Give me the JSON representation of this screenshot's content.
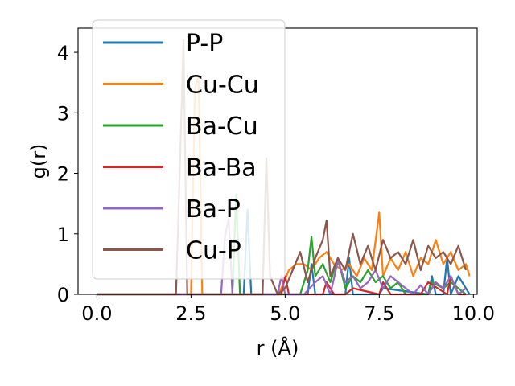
{
  "chart_data": {
    "type": "line",
    "xlabel": "r (Å)",
    "ylabel": "g(r)",
    "xlim": [
      -0.5,
      10.1
    ],
    "ylim": [
      0,
      4.4
    ],
    "xticks": [
      "0.0",
      "2.5",
      "5.0",
      "7.5",
      "10.0"
    ],
    "xtick_values": [
      0.0,
      2.5,
      5.0,
      7.5,
      10.0
    ],
    "yticks": [
      "0",
      "1",
      "2",
      "3",
      "4"
    ],
    "ytick_values": [
      0,
      1,
      2,
      3,
      4
    ],
    "grid": false,
    "legend_position": "upper-left",
    "series": [
      {
        "name": "P-P",
        "color": "#1f77b4",
        "x": [
          0,
          2.5,
          3.9,
          4.0,
          4.1,
          5.0,
          5.6,
          5.7,
          5.8,
          6.6,
          6.7,
          6.8,
          7.5,
          7.6,
          8.8,
          8.9,
          9.0,
          9.2,
          9.3,
          9.4,
          9.6,
          9.8,
          9.9
        ],
        "y": [
          0,
          0,
          0,
          1.4,
          0,
          0,
          0,
          0.5,
          0,
          0,
          0.6,
          0,
          0,
          0.1,
          0,
          0.3,
          0,
          0,
          0.6,
          0,
          0.3,
          0.1,
          0
        ]
      },
      {
        "name": "Cu-Cu",
        "color": "#ff7f0e",
        "x": [
          0,
          2.5,
          2.6,
          2.7,
          2.8,
          4.8,
          4.9,
          5.1,
          5.3,
          5.5,
          5.7,
          5.9,
          6.1,
          6.3,
          6.5,
          6.7,
          6.9,
          7.1,
          7.3,
          7.5,
          7.6,
          7.8,
          8.0,
          8.2,
          8.4,
          8.6,
          8.8,
          9.0,
          9.2,
          9.4,
          9.6,
          9.8,
          9.9
        ],
        "y": [
          0,
          0,
          3.4,
          3.6,
          0,
          0,
          0.1,
          0.4,
          0.5,
          0.5,
          0.4,
          0.6,
          0.7,
          0.5,
          0.4,
          0.5,
          0.3,
          0.6,
          0.4,
          1.35,
          0.3,
          0.6,
          0.4,
          0.7,
          0.3,
          0.6,
          0.5,
          0.9,
          0.5,
          0.7,
          0.4,
          0.5,
          0.3
        ]
      },
      {
        "name": "Ba-Cu",
        "color": "#2ca02c",
        "x": [
          0,
          3.5,
          3.6,
          3.7,
          3.8,
          5.4,
          5.5,
          5.6,
          5.7,
          5.8,
          6.0,
          6.2,
          6.4,
          6.6,
          6.8,
          7.0,
          7.2,
          7.4,
          7.6,
          7.8,
          8.0,
          8.2,
          8.8,
          8.9,
          9.2,
          9.4,
          9.6,
          9.8
        ],
        "y": [
          0,
          0,
          0,
          1.65,
          0,
          0,
          0.2,
          0.4,
          0.95,
          0.3,
          0.5,
          0.2,
          0.6,
          0.1,
          0.3,
          0.2,
          0.4,
          0.2,
          0.3,
          0.1,
          0.2,
          0,
          0,
          0.2,
          0.1,
          0.2,
          0.1,
          0
        ]
      },
      {
        "name": "Ba-Ba",
        "color": "#d62728",
        "x": [
          0,
          4.9,
          5.0,
          5.1,
          5.3,
          6.0,
          6.1,
          6.3,
          6.6,
          6.8,
          7.5,
          7.6,
          7.8,
          8.6,
          8.8,
          9.3,
          9.4,
          9.6,
          9.8
        ],
        "y": [
          0,
          0,
          0.3,
          0,
          0,
          0,
          0.2,
          0,
          0,
          0.1,
          0,
          0.2,
          0,
          0,
          0.2,
          0,
          0.3,
          0,
          0
        ]
      },
      {
        "name": "Ba-P",
        "color": "#9467bd",
        "x": [
          0,
          3.3,
          3.4,
          3.5,
          3.6,
          4.8,
          4.9,
          5.0,
          5.5,
          5.8,
          6.0,
          6.2,
          6.4,
          6.6,
          6.8,
          7.0,
          7.2,
          7.4,
          7.6,
          7.8,
          8.4,
          8.6,
          8.8,
          9.0,
          9.2,
          9.4,
          9.6,
          9.8
        ],
        "y": [
          0,
          0,
          0.95,
          1.25,
          0,
          0,
          0.3,
          0,
          0,
          0.2,
          0.3,
          0,
          0.55,
          0.2,
          0.3,
          0.1,
          0.2,
          0.4,
          0.1,
          0.3,
          0,
          0.15,
          0,
          0.2,
          0.1,
          0.3,
          0,
          0.1
        ]
      },
      {
        "name": "Cu-P",
        "color": "#8c564b",
        "x": [
          0,
          2.1,
          2.2,
          2.3,
          2.4,
          4.4,
          4.5,
          4.6,
          4.8,
          5.0,
          5.2,
          5.4,
          5.6,
          5.8,
          6.0,
          6.1,
          6.2,
          6.4,
          6.6,
          6.8,
          7.0,
          7.2,
          7.4,
          7.6,
          7.8,
          8.0,
          8.2,
          8.4,
          8.6,
          8.8,
          9.0,
          9.2,
          9.4,
          9.6,
          9.8
        ],
        "y": [
          0,
          0,
          2.0,
          4.2,
          0,
          0,
          2.25,
          0.3,
          0,
          0.1,
          0.4,
          0.7,
          0.2,
          0.6,
          0.9,
          1.22,
          0.3,
          0.6,
          0.4,
          1.0,
          0.5,
          0.8,
          0.4,
          0.9,
          0.6,
          0.7,
          0.5,
          0.9,
          0.4,
          0.8,
          0.6,
          0.7,
          0.5,
          0.8,
          0.4
        ]
      }
    ]
  }
}
